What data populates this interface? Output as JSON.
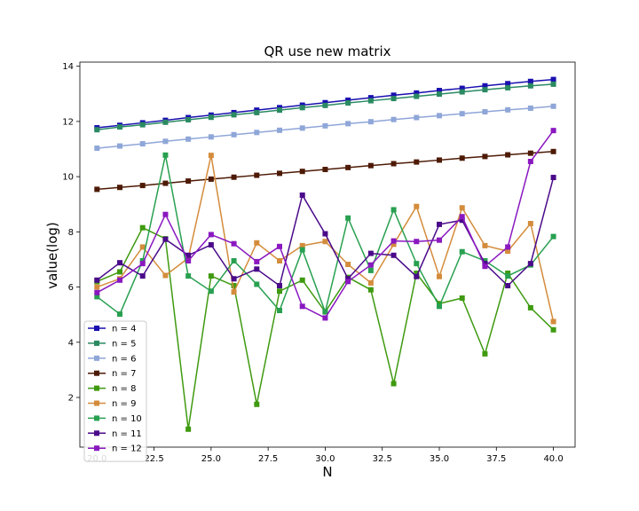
{
  "chart_data": {
    "type": "line",
    "title": "QR use new matrix",
    "xlabel": "N",
    "ylabel": "value(log)",
    "xlim": [
      19.25,
      40.95
    ],
    "ylim": [
      0.2,
      14.15
    ],
    "xticks": [
      20.0,
      22.5,
      25.0,
      27.5,
      30.0,
      32.5,
      35.0,
      37.5,
      40.0
    ],
    "xtick_labels": [
      "20.0",
      "22.5",
      "25.0",
      "27.5",
      "30.0",
      "32.5",
      "35.0",
      "37.5",
      "40.0"
    ],
    "yticks": [
      2,
      4,
      6,
      8,
      10,
      12,
      14
    ],
    "ytick_labels": [
      "2",
      "4",
      "6",
      "8",
      "10",
      "12",
      "14"
    ],
    "grid": false,
    "legend_position": "lower-left",
    "x": [
      20,
      21,
      22,
      23,
      24,
      25,
      26,
      27,
      28,
      29,
      30,
      31,
      32,
      33,
      34,
      35,
      36,
      37,
      38,
      39,
      40
    ],
    "series": [
      {
        "name": "n = 4",
        "color": "#1a0fb0",
        "values": [
          11.77,
          11.86,
          11.95,
          12.04,
          12.14,
          12.23,
          12.32,
          12.41,
          12.5,
          12.59,
          12.68,
          12.77,
          12.86,
          12.95,
          13.03,
          13.12,
          13.2,
          13.29,
          13.37,
          13.45,
          13.52
        ]
      },
      {
        "name": "n = 5",
        "color": "#2a8a62",
        "values": [
          11.7,
          11.8,
          11.88,
          11.97,
          12.06,
          12.15,
          12.24,
          12.32,
          12.41,
          12.5,
          12.58,
          12.67,
          12.75,
          12.83,
          12.91,
          12.99,
          13.07,
          13.15,
          13.22,
          13.29,
          13.35
        ]
      },
      {
        "name": "n = 6",
        "color": "#8fa6d8",
        "values": [
          11.03,
          11.11,
          11.19,
          11.28,
          11.36,
          11.44,
          11.52,
          11.6,
          11.68,
          11.76,
          11.84,
          11.92,
          11.99,
          12.07,
          12.14,
          12.21,
          12.28,
          12.35,
          12.42,
          12.48,
          12.55
        ]
      },
      {
        "name": "n = 7",
        "color": "#4d1a05",
        "values": [
          9.54,
          9.61,
          9.68,
          9.76,
          9.84,
          9.91,
          9.98,
          10.05,
          10.12,
          10.19,
          10.26,
          10.33,
          10.4,
          10.47,
          10.53,
          10.6,
          10.67,
          10.73,
          10.79,
          10.85,
          10.91
        ]
      },
      {
        "name": "n = 8",
        "color": "#3f9a10",
        "values": [
          6.2,
          6.55,
          8.15,
          7.75,
          0.85,
          6.4,
          6.05,
          1.75,
          5.85,
          6.25,
          5.1,
          6.35,
          5.9,
          2.5,
          6.5,
          5.4,
          5.6,
          3.58,
          6.5,
          5.25,
          4.45
        ]
      },
      {
        "name": "n = 9",
        "color": "#d48c3c",
        "values": [
          6.0,
          6.3,
          7.45,
          6.42,
          7.05,
          10.77,
          5.82,
          7.6,
          6.95,
          7.5,
          7.65,
          6.82,
          6.15,
          7.55,
          8.92,
          6.38,
          8.87,
          7.5,
          7.3,
          8.3,
          4.75
        ]
      },
      {
        "name": "n = 10",
        "color": "#28a050",
        "values": [
          5.65,
          5.02,
          6.95,
          10.78,
          6.4,
          5.85,
          6.95,
          6.1,
          5.15,
          7.35,
          5.1,
          8.5,
          6.6,
          8.8,
          6.85,
          5.3,
          7.28,
          6.95,
          6.4,
          6.8,
          7.83
        ]
      },
      {
        "name": "n = 11",
        "color": "#4a0a8a",
        "values": [
          6.25,
          6.88,
          6.4,
          7.73,
          7.15,
          7.53,
          6.3,
          6.65,
          6.05,
          9.33,
          7.93,
          6.3,
          7.22,
          7.15,
          6.38,
          8.27,
          8.42,
          6.85,
          6.05,
          6.85,
          9.97
        ]
      },
      {
        "name": "n = 12",
        "color": "#8a18c0",
        "values": [
          5.8,
          6.25,
          6.85,
          8.63,
          6.95,
          7.9,
          7.57,
          6.92,
          7.47,
          5.3,
          4.88,
          6.2,
          6.8,
          7.67,
          7.65,
          7.7,
          8.55,
          6.75,
          7.45,
          10.55,
          11.67
        ]
      }
    ]
  }
}
